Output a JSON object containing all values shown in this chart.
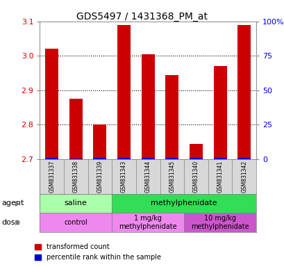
{
  "title": "GDS5497 / 1431368_PM_at",
  "samples": [
    "GSM831337",
    "GSM831338",
    "GSM831339",
    "GSM831343",
    "GSM831344",
    "GSM831345",
    "GSM831340",
    "GSM831341",
    "GSM831342"
  ],
  "transformed_count": [
    3.02,
    2.875,
    2.8,
    3.09,
    3.005,
    2.945,
    2.745,
    2.97,
    3.09
  ],
  "base_value": 2.7,
  "percentile_rank": [
    5,
    3,
    4,
    5,
    5,
    4,
    4,
    4,
    5
  ],
  "percentile_scale": 0.001,
  "ylim": [
    2.7,
    3.1
  ],
  "yticks": [
    2.7,
    2.8,
    2.9,
    3.0,
    3.1
  ],
  "y2ticks": [
    0,
    25,
    50,
    75,
    100
  ],
  "y2tick_labels": [
    "0",
    "25",
    "50",
    "75",
    "100%"
  ],
  "agent_groups": [
    {
      "label": "saline",
      "start": 0,
      "end": 3,
      "color": "#aaffaa"
    },
    {
      "label": "methylphenidate",
      "start": 3,
      "end": 9,
      "color": "#33dd55"
    }
  ],
  "dose_groups": [
    {
      "label": "control",
      "start": 0,
      "end": 3,
      "color": "#ee88ee"
    },
    {
      "label": "1 mg/kg\nmethylphenidate",
      "start": 3,
      "end": 6,
      "color": "#ee88ee"
    },
    {
      "label": "10 mg/kg\nmethylphenidate",
      "start": 6,
      "end": 9,
      "color": "#cc55cc"
    }
  ],
  "bar_color": "#cc0000",
  "blue_color": "#0000cc",
  "tick_label_color": "#cc0000",
  "y2_label_color": "#0000cc",
  "title_color": "#000000",
  "background_color": "#ffffff",
  "plot_bg": "#ffffff",
  "grid_color": "#000000",
  "legend_red_label": "transformed count",
  "legend_blue_label": "percentile rank within the sample"
}
